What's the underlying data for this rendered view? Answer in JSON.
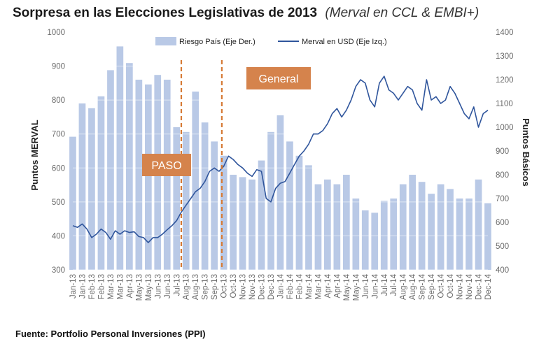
{
  "title": "Sorpresa en las Elecciones Legislativas de 2013",
  "subtitle": "(Merval en CCL & EMBI+)",
  "source": "Fuente: Portfolio Personal Inversiones (PPI)",
  "colors": {
    "bars": "#b9c9e6",
    "line": "#2f559c",
    "marker": "#d67a35",
    "annotation_bg": "#d5834c"
  },
  "chart_data": {
    "type": "line",
    "title": "Sorpresa en las Elecciones Legislativas de 2013",
    "left_axis": {
      "label": "Puntos MERVAL",
      "ylim": [
        300,
        1000
      ],
      "ticks": [
        1000,
        900,
        800,
        700,
        600,
        500,
        400,
        300
      ]
    },
    "right_axis": {
      "label": "Puntos Básicos",
      "ylim": [
        400,
        1400
      ],
      "ticks": [
        1400,
        1300,
        1200,
        1100,
        1000,
        900,
        800,
        700,
        600,
        500,
        400
      ]
    },
    "x_ticks": [
      "Jan-13",
      "Jan-13",
      "Feb-13",
      "Feb-13",
      "Mar-13",
      "Mar-13",
      "Apr-13",
      "May-13",
      "May-13",
      "Jun-13",
      "Jun-13",
      "Jul-13",
      "Aug-13",
      "Aug-13",
      "Sep-13",
      "Sep-13",
      "Oct-13",
      "Oct-13",
      "Nov-13",
      "Nov-13",
      "Dec-13",
      "Dec-13",
      "Jan-14",
      "Feb-14",
      "Feb-14",
      "Mar-14",
      "Mar-14",
      "Apr-14",
      "Apr-14",
      "May-14",
      "May-14",
      "Jun-14",
      "Jun-14",
      "Jul-14",
      "Jul-14",
      "Aug-14",
      "Aug-14",
      "Sep-14",
      "Sep-14",
      "Oct-14",
      "Oct-14",
      "Nov-14",
      "Nov-14",
      "Dec-14",
      "Dec-14"
    ],
    "legend": [
      "Riesgo País (Eje Der.)",
      "Merval en USD (Eje Izq.)"
    ],
    "annotations": [
      {
        "label": "PASO",
        "x_index": 11.5
      },
      {
        "label": "General",
        "x_index": 15.8
      }
    ],
    "series": [
      {
        "name": "Riesgo País (Eje Der.)",
        "type": "bar",
        "axis": "right",
        "x": [
          0,
          1,
          2,
          3,
          4,
          5,
          6,
          7,
          8,
          9,
          10,
          11,
          12,
          13,
          14,
          15,
          16,
          17,
          18,
          19,
          20,
          21,
          22,
          23,
          24,
          25,
          26,
          27,
          28,
          29,
          30,
          31,
          32,
          33,
          34,
          35,
          36,
          37,
          38,
          39,
          40,
          41,
          42,
          43,
          44
        ],
        "values": [
          960,
          1100,
          1080,
          1130,
          1240,
          1340,
          1270,
          1200,
          1180,
          1220,
          1200,
          1000,
          980,
          1150,
          1020,
          940,
          880,
          800,
          790,
          780,
          860,
          980,
          1050,
          940,
          880,
          840,
          760,
          780,
          760,
          800,
          700,
          650,
          640,
          690,
          700,
          760,
          800,
          770,
          720,
          760,
          740,
          700,
          700,
          780,
          680
        ]
      },
      {
        "name": "Merval en USD (Eje Izq.)",
        "type": "line",
        "axis": "left",
        "x": [
          0,
          0.5,
          1,
          1.5,
          2,
          2.5,
          3,
          3.5,
          4,
          4.5,
          5,
          5.5,
          6,
          6.5,
          7,
          7.5,
          8,
          8.5,
          9,
          9.5,
          10,
          10.5,
          11,
          11.5,
          12,
          12.5,
          13,
          13.5,
          14,
          14.5,
          15,
          15.5,
          16,
          16.5,
          17,
          17.5,
          18,
          18.5,
          19,
          19.5,
          20,
          20.5,
          21,
          21.5,
          22,
          22.5,
          23,
          23.5,
          24,
          24.5,
          25,
          25.5,
          26,
          26.5,
          27,
          27.5,
          28,
          28.5,
          29,
          29.5,
          30,
          30.5,
          31,
          31.5,
          32,
          32.5,
          33,
          33.5,
          34,
          34.5,
          35,
          35.5,
          36,
          36.5,
          37,
          37.5,
          38,
          38.5,
          39,
          39.5,
          40,
          40.5,
          41,
          41.5,
          42,
          42.5,
          43,
          43.5,
          44
        ],
        "values": [
          430,
          425,
          435,
          420,
          395,
          405,
          420,
          410,
          390,
          415,
          405,
          415,
          410,
          412,
          398,
          395,
          380,
          395,
          395,
          405,
          418,
          430,
          445,
          470,
          490,
          510,
          530,
          540,
          560,
          590,
          600,
          590,
          605,
          635,
          625,
          610,
          600,
          585,
          575,
          595,
          590,
          510,
          500,
          540,
          555,
          560,
          585,
          610,
          635,
          650,
          670,
          700,
          700,
          710,
          730,
          760,
          775,
          750,
          770,
          800,
          840,
          860,
          850,
          800,
          780,
          850,
          870,
          830,
          820,
          800,
          820,
          840,
          830,
          790,
          770,
          860,
          800,
          810,
          790,
          800,
          840,
          820,
          790,
          760,
          745,
          780,
          720,
          760,
          770
        ]
      }
    ]
  }
}
